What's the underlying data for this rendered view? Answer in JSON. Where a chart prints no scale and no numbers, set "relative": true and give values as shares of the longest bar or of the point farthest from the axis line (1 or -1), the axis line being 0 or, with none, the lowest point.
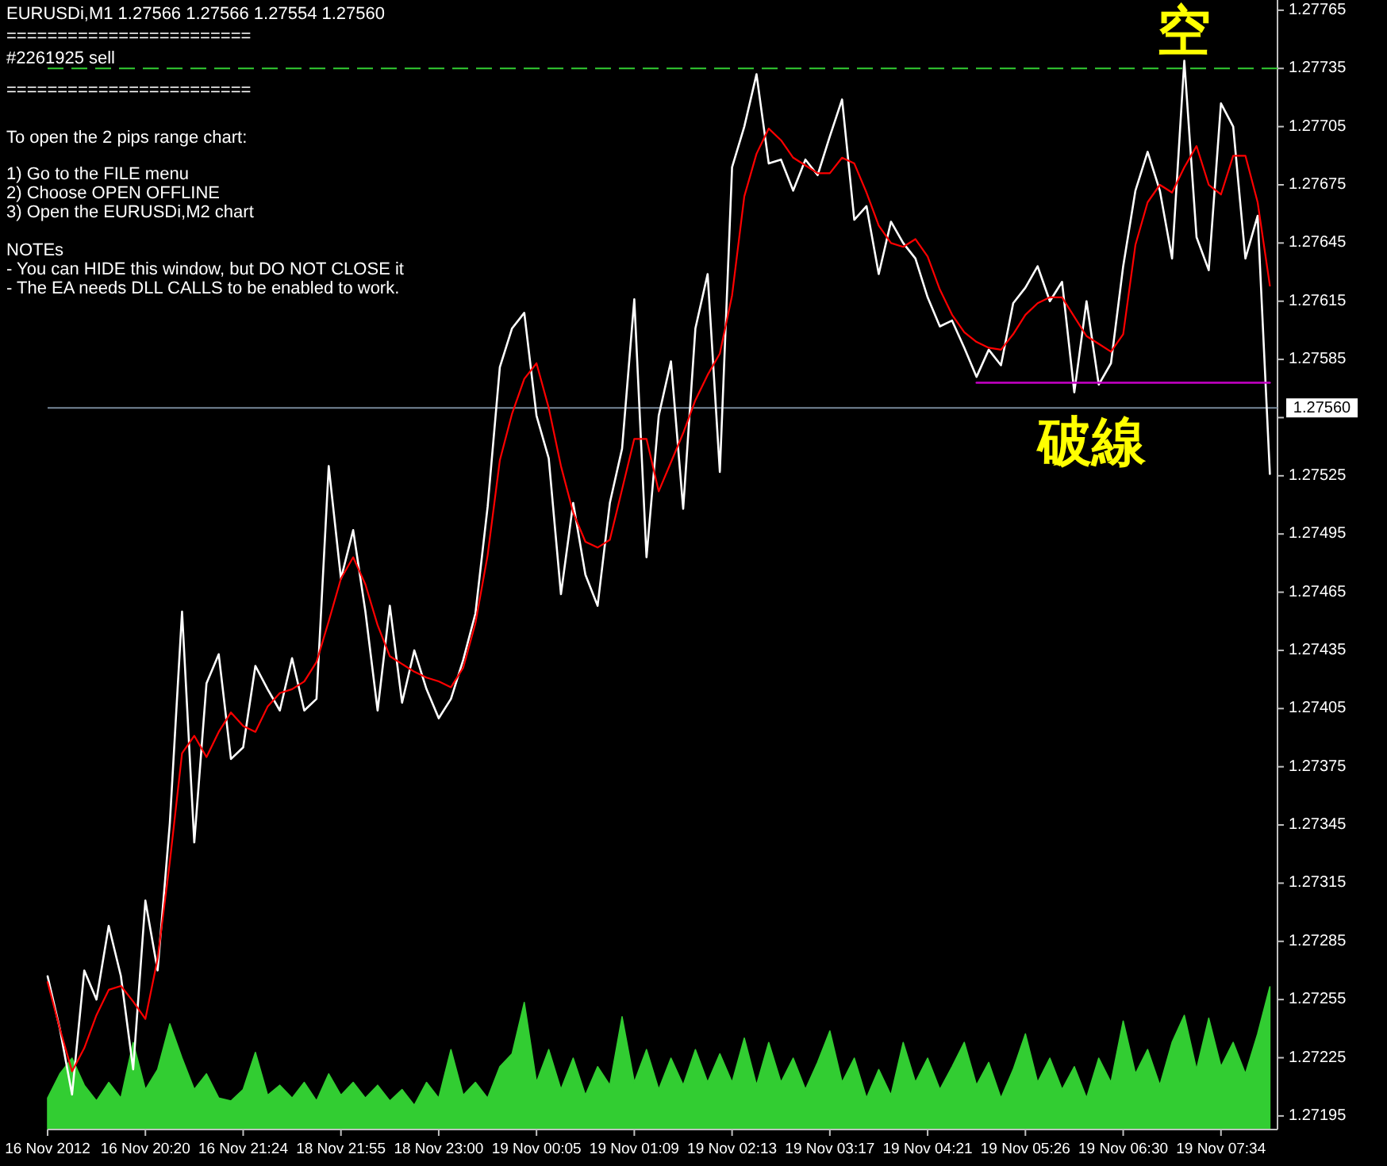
{
  "chart_data": [
    {
      "type": "line",
      "title": "EURUSDi,M1  1.27566 1.27566 1.27554 1.27560",
      "annotations": [
        "========================",
        "========================",
        "To open the 2 pips range chart:",
        "1) Go to the FILE menu",
        "2) Choose OPEN OFFLINE",
        "3) Open the EURUSDi,M2 chart",
        "NOTEs",
        "- You can HIDE this window, but DO NOT CLOSE it",
        "- The EA needs DLL CALLS to be enabled to work.",
        "空",
        "破線"
      ],
      "categories": [
        "16 Nov 2012",
        null,
        null,
        null,
        null,
        null,
        null,
        null,
        "16 Nov 20:20",
        null,
        null,
        null,
        null,
        null,
        null,
        null,
        "16 Nov 21:24",
        null,
        null,
        null,
        null,
        null,
        null,
        null,
        "18 Nov 21:55",
        null,
        null,
        null,
        null,
        null,
        null,
        null,
        "18 Nov 23:00",
        null,
        null,
        null,
        null,
        null,
        null,
        null,
        "19 Nov 00:05",
        null,
        null,
        null,
        null,
        null,
        null,
        null,
        "19 Nov 01:09",
        null,
        null,
        null,
        null,
        null,
        null,
        null,
        "19 Nov 02:13",
        null,
        null,
        null,
        null,
        null,
        null,
        null,
        "19 Nov 03:17",
        null,
        null,
        null,
        null,
        null,
        null,
        null,
        "19 Nov 04:21",
        null,
        null,
        null,
        null,
        null,
        null,
        null,
        "19 Nov 05:26",
        null,
        null,
        null,
        null,
        null,
        null,
        null,
        "19 Nov 06:30",
        null,
        null,
        null,
        null,
        null,
        null,
        null,
        "19 Nov 07:34",
        null,
        null,
        null,
        null
      ],
      "ylim": [
        1.27188,
        1.27767
      ],
      "yticks": [
        1.27765,
        1.27735,
        1.27705,
        1.27675,
        1.27645,
        1.27615,
        1.27585,
        {
          "value": 1.27555,
          "label": null
        },
        1.27525,
        1.27495,
        1.27465,
        1.27435,
        1.27405,
        1.27375,
        1.27345,
        1.27315,
        1.27285,
        1.27255,
        1.27225,
        1.27195
      ],
      "ref_lines": [
        {
          "axis": "y",
          "value": 1.27735,
          "label": "#2261925 sell",
          "color": "#32cd32",
          "line_style": "dashed"
        },
        {
          "axis": "y",
          "value": 1.2756,
          "label": "1.27560",
          "color": "#778899"
        }
      ],
      "series": [
        {
          "color": "#ffffff",
          "values": [
            1.27267,
            1.2724,
            1.27206,
            1.2727,
            1.27255,
            1.27293,
            1.27267,
            1.27219,
            1.27306,
            1.2727,
            1.27346,
            1.27455,
            1.27336,
            1.27418,
            1.27433,
            1.27379,
            1.27385,
            1.27427,
            1.27415,
            1.27404,
            1.27431,
            1.27404,
            1.2741,
            1.2753,
            1.27472,
            1.27497,
            1.27455,
            1.27404,
            1.27458,
            1.27408,
            1.27435,
            1.27415,
            1.274,
            1.2741,
            1.2743,
            1.27454,
            1.27509,
            1.27581,
            1.27601,
            1.27609,
            1.27556,
            1.27534,
            1.27464,
            1.27511,
            1.27474,
            1.27458,
            1.27511,
            1.27539,
            1.27616,
            1.27483,
            1.27556,
            1.27584,
            1.27508,
            1.27601,
            1.27629,
            1.27527,
            1.27684,
            1.27705,
            1.27732,
            1.27686,
            1.27688,
            1.27672,
            1.27688,
            1.2768,
            1.277,
            1.27719,
            1.27657,
            1.27664,
            1.27629,
            1.27656,
            1.27645,
            1.27637,
            1.27617,
            1.27602,
            1.27605,
            1.27591,
            1.27576,
            1.2759,
            1.27582,
            1.27614,
            1.27622,
            1.27633,
            1.27615,
            1.27625,
            1.27568,
            1.27615,
            1.27572,
            1.27583,
            1.27633,
            1.27672,
            1.27692,
            1.27672,
            1.27637,
            1.27739,
            1.27648,
            1.27631,
            1.27717,
            1.27705,
            1.27637,
            1.27659,
            1.27526
          ]
        },
        {
          "color": "#ff0000",
          "values": [
            1.27264,
            1.2724,
            1.27218,
            1.2723,
            1.27247,
            1.2726,
            1.27262,
            1.27254,
            1.27245,
            1.27276,
            1.27326,
            1.27382,
            1.27391,
            1.2738,
            1.27393,
            1.27403,
            1.27396,
            1.27393,
            1.27406,
            1.27413,
            1.27415,
            1.27419,
            1.27429,
            1.2745,
            1.27472,
            1.27483,
            1.27469,
            1.27448,
            1.27432,
            1.27428,
            1.27424,
            1.27421,
            1.27419,
            1.27416,
            1.27426,
            1.27449,
            1.27484,
            1.27533,
            1.27557,
            1.27575,
            1.27583,
            1.2756,
            1.2753,
            1.27506,
            1.27491,
            1.27488,
            1.27492,
            1.27518,
            1.27544,
            1.27544,
            1.27517,
            1.27532,
            1.27547,
            1.27564,
            1.27577,
            1.27588,
            1.27618,
            1.27669,
            1.27691,
            1.27704,
            1.27698,
            1.27689,
            1.27685,
            1.27681,
            1.27681,
            1.27689,
            1.27686,
            1.27671,
            1.27654,
            1.27645,
            1.27643,
            1.27647,
            1.27638,
            1.27621,
            1.27608,
            1.27599,
            1.27594,
            1.27591,
            1.2759,
            1.27598,
            1.27608,
            1.27614,
            1.27617,
            1.27617,
            1.27607,
            1.27597,
            1.27593,
            1.27589,
            1.27598,
            1.27644,
            1.27666,
            1.27675,
            1.27671,
            1.27684,
            1.27695,
            1.27675,
            1.2767,
            1.2769,
            1.2769,
            1.27666,
            1.27623
          ]
        },
        {
          "color": "#c800c8",
          "values": [
            null,
            null,
            null,
            null,
            null,
            null,
            null,
            null,
            null,
            null,
            null,
            null,
            null,
            null,
            null,
            null,
            null,
            null,
            null,
            null,
            null,
            null,
            null,
            null,
            null,
            null,
            null,
            null,
            null,
            null,
            null,
            null,
            null,
            null,
            null,
            null,
            null,
            null,
            null,
            null,
            null,
            null,
            null,
            null,
            null,
            null,
            null,
            null,
            null,
            null,
            null,
            null,
            null,
            null,
            null,
            null,
            null,
            null,
            null,
            null,
            null,
            null,
            null,
            null,
            null,
            null,
            null,
            null,
            null,
            null,
            null,
            null,
            null,
            null,
            null,
            null,
            1.27573,
            1.27573,
            1.27573,
            1.27573,
            1.27573,
            1.27573,
            1.27573,
            1.27573,
            1.27573,
            1.27573,
            1.27573,
            1.27573,
            1.27573,
            1.27573,
            1.27573,
            1.27573,
            1.27573,
            1.27573,
            1.27573,
            1.27573,
            1.27573,
            1.27573,
            1.27573,
            1.27573,
            1.27573
          ]
        }
      ]
    },
    {
      "type": "area",
      "relative": true,
      "color": "#32cd32",
      "categories": [
        null,
        null,
        null,
        null,
        null,
        null,
        null,
        null,
        null,
        null,
        null,
        null,
        null,
        null,
        null,
        null,
        null,
        null,
        null,
        null,
        null,
        null,
        null,
        null,
        null,
        null,
        null,
        null,
        null,
        null,
        null,
        null,
        null,
        null,
        null,
        null,
        null,
        null,
        null,
        null,
        null,
        null,
        null,
        null,
        null,
        null,
        null,
        null,
        null,
        null,
        null,
        null,
        null,
        null,
        null,
        null,
        null,
        null,
        null,
        null,
        null,
        null,
        null,
        null,
        null,
        null,
        null,
        null,
        null,
        null,
        null,
        null,
        null,
        null,
        null,
        null,
        null,
        null,
        null,
        null,
        null,
        null,
        null,
        null,
        null,
        null,
        null,
        null,
        null,
        null,
        null,
        null,
        null,
        null,
        null,
        null,
        null,
        null,
        null,
        null,
        null
      ],
      "values": [
        0.22,
        0.39,
        0.5,
        0.31,
        0.2,
        0.33,
        0.22,
        0.61,
        0.28,
        0.42,
        0.74,
        0.5,
        0.28,
        0.39,
        0.22,
        0.2,
        0.28,
        0.54,
        0.24,
        0.31,
        0.22,
        0.33,
        0.2,
        0.39,
        0.24,
        0.33,
        0.22,
        0.31,
        0.2,
        0.28,
        0.17,
        0.33,
        0.22,
        0.56,
        0.24,
        0.33,
        0.22,
        0.44,
        0.53,
        0.89,
        0.33,
        0.56,
        0.28,
        0.5,
        0.24,
        0.44,
        0.31,
        0.79,
        0.33,
        0.56,
        0.28,
        0.5,
        0.31,
        0.56,
        0.33,
        0.53,
        0.33,
        0.64,
        0.31,
        0.61,
        0.33,
        0.5,
        0.28,
        0.47,
        0.69,
        0.33,
        0.5,
        0.22,
        0.42,
        0.24,
        0.61,
        0.33,
        0.5,
        0.28,
        0.44,
        0.61,
        0.31,
        0.47,
        0.22,
        0.42,
        0.67,
        0.33,
        0.5,
        0.28,
        0.44,
        0.22,
        0.5,
        0.33,
        0.76,
        0.39,
        0.56,
        0.31,
        0.61,
        0.8,
        0.42,
        0.78,
        0.44,
        0.61,
        0.39,
        0.67,
        1
      ]
    }
  ]
}
